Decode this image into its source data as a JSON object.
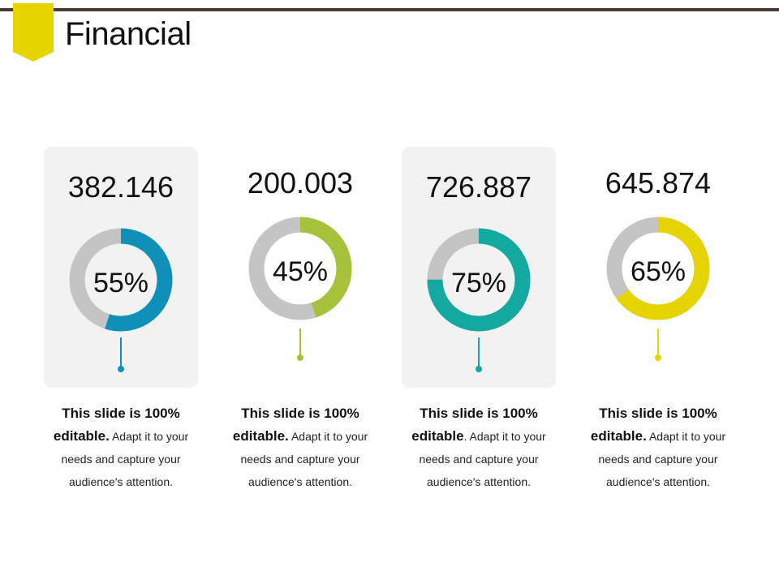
{
  "slide": {
    "title": "Financial",
    "colors": {
      "rule": "#4a3a33",
      "flag": "#e6d400",
      "track": "#c4c4c4",
      "panel": "#f2f2f2"
    }
  },
  "chart_data": {
    "type": "donut",
    "items": [
      {
        "value": "382.146",
        "percent": 55,
        "percent_label": "55%",
        "color": "#0e90b8",
        "panel": true,
        "text_bold_1": "This slide is 100%",
        "text_bold_2": "editable.",
        "text_rest": "Adapt it to your",
        "line3": "needs and capture your",
        "line4": "audience's attention."
      },
      {
        "value": "200.003",
        "percent": 45,
        "percent_label": "45%",
        "color": "#a6c23b",
        "panel": false,
        "text_bold_1": "This slide is 100%",
        "text_bold_2": "editable.",
        "text_rest": "Adapt it to your",
        "line3": "needs and capture your",
        "line4": "audience's attention."
      },
      {
        "value": "726.887",
        "percent": 75,
        "percent_label": "75%",
        "color": "#13a8a0",
        "panel": true,
        "text_bold_1": "This slide is 100%",
        "text_bold_2": "editable",
        "text_rest": ". Adapt it to your",
        "line3": "needs and capture your",
        "line4": "audience's attention."
      },
      {
        "value": "645.874",
        "percent": 65,
        "percent_label": "65%",
        "color": "#e6d400",
        "panel": false,
        "text_bold_1": "This slide is 100%",
        "text_bold_2": "editable.",
        "text_rest": "Adapt it to your",
        "line3": "needs and capture your",
        "line4": "audience's attention."
      }
    ]
  }
}
